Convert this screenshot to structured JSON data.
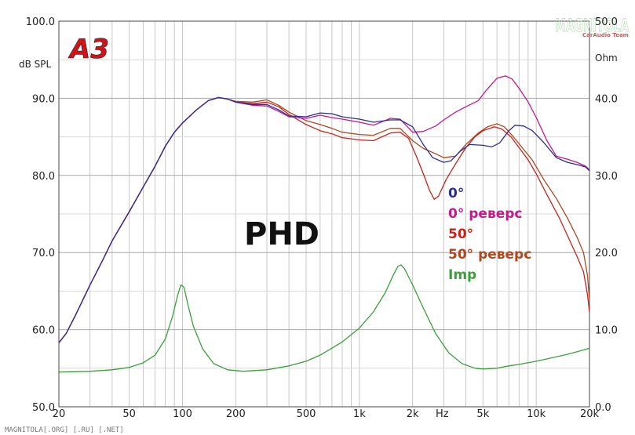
{
  "chart_data": {
    "type": "line",
    "title": "",
    "logo_text": "A3",
    "model_label": "PHD",
    "x_unit": "Hz",
    "y_left_label": "dB SPL",
    "y_right_label": "Ohm",
    "x_scale": "log",
    "xlim": [
      20,
      20000
    ],
    "ylim_left": [
      50,
      100
    ],
    "ylim_right": [
      0,
      50
    ],
    "grid": true,
    "legend_position": "center-right",
    "x_tick_labels": [
      {
        "value": 20,
        "label": "20"
      },
      {
        "value": 50,
        "label": "50"
      },
      {
        "value": 100,
        "label": "100"
      },
      {
        "value": 200,
        "label": "200"
      },
      {
        "value": 500,
        "label": "500"
      },
      {
        "value": 1000,
        "label": "1k"
      },
      {
        "value": 2000,
        "label": "2k"
      },
      {
        "value": 5000,
        "label": "5k"
      },
      {
        "value": 10000,
        "label": "10k"
      },
      {
        "value": 20000,
        "label": "20k"
      }
    ],
    "y_left_ticks": [
      {
        "value": 100,
        "label": "100.0"
      },
      {
        "value": 90,
        "label": "90.0"
      },
      {
        "value": 80,
        "label": "80.0"
      },
      {
        "value": 70,
        "label": "70.0"
      },
      {
        "value": 60,
        "label": "60.0"
      },
      {
        "value": 50,
        "label": "50.0"
      }
    ],
    "y_right_ticks": [
      {
        "value": 50,
        "label": "50.0"
      },
      {
        "value": 40,
        "label": "40.0"
      },
      {
        "value": 30,
        "label": "30.0"
      },
      {
        "value": 20,
        "label": "20.0"
      },
      {
        "value": 10,
        "label": "10.0"
      },
      {
        "value": 0,
        "label": "0.0"
      }
    ],
    "series": [
      {
        "name": "0°",
        "color": "#2b2f8f",
        "axis": "left",
        "points": [
          [
            20,
            58.3
          ],
          [
            22,
            59.5
          ],
          [
            25,
            62
          ],
          [
            30,
            65.8
          ],
          [
            35,
            68.8
          ],
          [
            40,
            71.5
          ],
          [
            50,
            75.3
          ],
          [
            60,
            78.5
          ],
          [
            70,
            81.2
          ],
          [
            80,
            83.8
          ],
          [
            90,
            85.6
          ],
          [
            100,
            86.8
          ],
          [
            120,
            88.5
          ],
          [
            140,
            89.7
          ],
          [
            160,
            90.1
          ],
          [
            180,
            89.9
          ],
          [
            200,
            89.5
          ],
          [
            250,
            89.2
          ],
          [
            300,
            89.2
          ],
          [
            350,
            88.5
          ],
          [
            400,
            87.7
          ],
          [
            500,
            87.6
          ],
          [
            600,
            88.1
          ],
          [
            700,
            88
          ],
          [
            800,
            87.6
          ],
          [
            1000,
            87.3
          ],
          [
            1200,
            86.9
          ],
          [
            1500,
            87.2
          ],
          [
            1700,
            87.2
          ],
          [
            2000,
            86.3
          ],
          [
            2300,
            84
          ],
          [
            2600,
            82.3
          ],
          [
            3000,
            81.7
          ],
          [
            3300,
            81.9
          ],
          [
            3700,
            83.1
          ],
          [
            4200,
            84
          ],
          [
            5000,
            83.9
          ],
          [
            5600,
            83.7
          ],
          [
            6200,
            84.2
          ],
          [
            7000,
            85.8
          ],
          [
            7600,
            86.5
          ],
          [
            8500,
            86.4
          ],
          [
            9500,
            85.8
          ],
          [
            11000,
            84.3
          ],
          [
            13000,
            82.3
          ],
          [
            15000,
            81.7
          ],
          [
            17000,
            81.4
          ],
          [
            19000,
            81.1
          ],
          [
            20000,
            80.6
          ]
        ]
      },
      {
        "name": "0° реверс",
        "color": "#c8168f",
        "axis": "left",
        "points": [
          [
            20,
            58.3
          ],
          [
            22,
            59.5
          ],
          [
            25,
            62
          ],
          [
            30,
            65.8
          ],
          [
            35,
            68.8
          ],
          [
            40,
            71.5
          ],
          [
            50,
            75.3
          ],
          [
            60,
            78.5
          ],
          [
            70,
            81.2
          ],
          [
            80,
            83.8
          ],
          [
            90,
            85.6
          ],
          [
            100,
            86.8
          ],
          [
            120,
            88.5
          ],
          [
            140,
            89.7
          ],
          [
            160,
            90.1
          ],
          [
            180,
            89.9
          ],
          [
            200,
            89.5
          ],
          [
            250,
            89.1
          ],
          [
            300,
            89
          ],
          [
            350,
            88.3
          ],
          [
            400,
            87.6
          ],
          [
            500,
            87.4
          ],
          [
            600,
            87.8
          ],
          [
            700,
            87.5
          ],
          [
            800,
            87.3
          ],
          [
            1000,
            86.9
          ],
          [
            1200,
            86.5
          ],
          [
            1500,
            87.4
          ],
          [
            1700,
            87.3
          ],
          [
            2000,
            85.6
          ],
          [
            2300,
            85.7
          ],
          [
            2700,
            86.4
          ],
          [
            3000,
            87.2
          ],
          [
            3500,
            88.2
          ],
          [
            4000,
            88.9
          ],
          [
            4700,
            89.7
          ],
          [
            5200,
            91
          ],
          [
            6000,
            92.6
          ],
          [
            6700,
            92.9
          ],
          [
            7300,
            92.5
          ],
          [
            8000,
            91.3
          ],
          [
            9000,
            89.5
          ],
          [
            10000,
            87.5
          ],
          [
            11500,
            84.5
          ],
          [
            13000,
            82.5
          ],
          [
            15000,
            82.1
          ],
          [
            17000,
            81.7
          ],
          [
            19000,
            81.2
          ],
          [
            20000,
            80.7
          ]
        ]
      },
      {
        "name": "50°",
        "color": "#c8231b",
        "axis": "left",
        "points": [
          [
            20,
            58.3
          ],
          [
            22,
            59.5
          ],
          [
            25,
            62
          ],
          [
            30,
            65.8
          ],
          [
            35,
            68.8
          ],
          [
            40,
            71.5
          ],
          [
            50,
            75.3
          ],
          [
            60,
            78.5
          ],
          [
            70,
            81.2
          ],
          [
            80,
            83.8
          ],
          [
            90,
            85.6
          ],
          [
            100,
            86.8
          ],
          [
            120,
            88.5
          ],
          [
            140,
            89.7
          ],
          [
            160,
            90.1
          ],
          [
            180,
            89.9
          ],
          [
            200,
            89.5
          ],
          [
            250,
            89.3
          ],
          [
            300,
            89.5
          ],
          [
            350,
            88.9
          ],
          [
            400,
            87.9
          ],
          [
            500,
            86.6
          ],
          [
            600,
            85.8
          ],
          [
            700,
            85.4
          ],
          [
            800,
            84.9
          ],
          [
            1000,
            84.6
          ],
          [
            1200,
            84.5
          ],
          [
            1500,
            85.5
          ],
          [
            1700,
            85.6
          ],
          [
            1900,
            84.8
          ],
          [
            2100,
            82.5
          ],
          [
            2300,
            80.2
          ],
          [
            2500,
            78
          ],
          [
            2650,
            76.9
          ],
          [
            2800,
            77.3
          ],
          [
            3100,
            79.5
          ],
          [
            3500,
            81.5
          ],
          [
            4000,
            83.6
          ],
          [
            4500,
            85
          ],
          [
            5000,
            85.8
          ],
          [
            5800,
            86.3
          ],
          [
            6400,
            86
          ],
          [
            7200,
            85
          ],
          [
            8000,
            83.6
          ],
          [
            9000,
            82
          ],
          [
            10000,
            80.2
          ],
          [
            11500,
            77.5
          ],
          [
            13500,
            74.5
          ],
          [
            15500,
            71.5
          ],
          [
            17000,
            69.5
          ],
          [
            18500,
            67.5
          ],
          [
            19500,
            64.5
          ],
          [
            20000,
            62.3
          ]
        ]
      },
      {
        "name": "50° реверс",
        "color": "#b2461f",
        "axis": "left",
        "points": [
          [
            20,
            58.3
          ],
          [
            22,
            59.5
          ],
          [
            25,
            62
          ],
          [
            30,
            65.8
          ],
          [
            35,
            68.8
          ],
          [
            40,
            71.5
          ],
          [
            50,
            75.3
          ],
          [
            60,
            78.5
          ],
          [
            70,
            81.2
          ],
          [
            80,
            83.8
          ],
          [
            90,
            85.6
          ],
          [
            100,
            86.8
          ],
          [
            120,
            88.5
          ],
          [
            140,
            89.7
          ],
          [
            160,
            90.1
          ],
          [
            180,
            89.9
          ],
          [
            200,
            89.6
          ],
          [
            250,
            89.5
          ],
          [
            300,
            89.8
          ],
          [
            350,
            89.1
          ],
          [
            400,
            88.2
          ],
          [
            500,
            87.1
          ],
          [
            600,
            86.6
          ],
          [
            700,
            86.1
          ],
          [
            800,
            85.6
          ],
          [
            1000,
            85.3
          ],
          [
            1200,
            85.2
          ],
          [
            1500,
            86.1
          ],
          [
            1700,
            86.1
          ],
          [
            2000,
            84.5
          ],
          [
            2300,
            83.5
          ],
          [
            2700,
            82.8
          ],
          [
            3000,
            82.3
          ],
          [
            3500,
            82.5
          ],
          [
            4000,
            84
          ],
          [
            4700,
            85.5
          ],
          [
            5300,
            86.3
          ],
          [
            6000,
            86.7
          ],
          [
            6600,
            86.3
          ],
          [
            7300,
            85.2
          ],
          [
            8200,
            83.8
          ],
          [
            9500,
            82
          ],
          [
            11000,
            79.5
          ],
          [
            13000,
            77
          ],
          [
            15000,
            74.5
          ],
          [
            17000,
            72
          ],
          [
            18500,
            70
          ],
          [
            19500,
            67
          ],
          [
            20000,
            63.8
          ]
        ]
      },
      {
        "name": "Imp",
        "color": "#3aa13a",
        "axis": "right",
        "points": [
          [
            20,
            4.5
          ],
          [
            30,
            4.6
          ],
          [
            40,
            4.8
          ],
          [
            50,
            5.1
          ],
          [
            60,
            5.7
          ],
          [
            70,
            6.7
          ],
          [
            80,
            8.8
          ],
          [
            88,
            11.8
          ],
          [
            94,
            14.5
          ],
          [
            98,
            15.8
          ],
          [
            102,
            15.5
          ],
          [
            108,
            13
          ],
          [
            115,
            10.5
          ],
          [
            130,
            7.5
          ],
          [
            150,
            5.6
          ],
          [
            180,
            4.8
          ],
          [
            220,
            4.6
          ],
          [
            300,
            4.8
          ],
          [
            400,
            5.3
          ],
          [
            500,
            5.9
          ],
          [
            600,
            6.7
          ],
          [
            700,
            7.6
          ],
          [
            800,
            8.4
          ],
          [
            1000,
            10.2
          ],
          [
            1200,
            12.3
          ],
          [
            1400,
            14.8
          ],
          [
            1550,
            17
          ],
          [
            1650,
            18.2
          ],
          [
            1720,
            18.4
          ],
          [
            1800,
            17.9
          ],
          [
            2000,
            15.8
          ],
          [
            2300,
            12.8
          ],
          [
            2700,
            9.5
          ],
          [
            3200,
            7
          ],
          [
            3800,
            5.6
          ],
          [
            4500,
            5
          ],
          [
            5000,
            4.9
          ],
          [
            6000,
            5
          ],
          [
            7000,
            5.3
          ],
          [
            8000,
            5.5
          ],
          [
            10000,
            5.9
          ],
          [
            12000,
            6.3
          ],
          [
            15000,
            6.8
          ],
          [
            18000,
            7.3
          ],
          [
            20000,
            7.6
          ]
        ]
      }
    ]
  },
  "watermark": {
    "brand": "MAGNITOLA",
    "sub": "CarAudio Team",
    "footer": "MAGNITOLA[.ORG] [.RU] [.NET]"
  }
}
